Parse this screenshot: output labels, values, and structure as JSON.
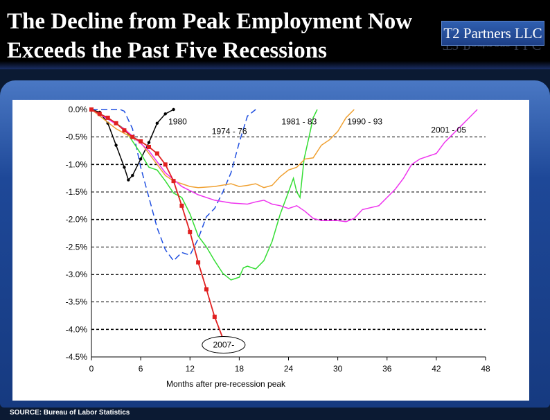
{
  "header": {
    "title": "The Decline from Peak Employment Now\nExceeds the Past Five Recessions",
    "brand": "T2 Partners LLC"
  },
  "footer": {
    "source": "SOURCE: Bureau of Labor Statistics"
  },
  "chart_data": {
    "type": "line",
    "title": "",
    "xlabel": "Months after pre-recession peak",
    "ylabel": "",
    "xlim": [
      0,
      48
    ],
    "ylim": [
      -4.5,
      0.0
    ],
    "xticks": [
      "0",
      "6",
      "12",
      "18",
      "24",
      "30",
      "36",
      "42",
      "48"
    ],
    "yticks": [
      "0.0%",
      "-0.5%",
      "-1.0%",
      "-1.5%",
      "-2.0%",
      "-2.5%",
      "-3.0%",
      "-3.5%",
      "-4.0%",
      "-4.5%"
    ],
    "grid": "horizontal dashed",
    "series": [
      {
        "name": "1980",
        "color": "#000000",
        "style": "solid-markers",
        "points": [
          [
            0,
            0
          ],
          [
            1,
            -0.05
          ],
          [
            2,
            -0.25
          ],
          [
            3,
            -0.65
          ],
          [
            4,
            -1.05
          ],
          [
            4.5,
            -1.28
          ],
          [
            5,
            -1.2
          ],
          [
            6,
            -0.9
          ],
          [
            7,
            -0.6
          ],
          [
            8,
            -0.25
          ],
          [
            9,
            -0.08
          ],
          [
            10,
            0
          ]
        ]
      },
      {
        "name": "1974 - 76",
        "color": "#1f4fe0",
        "style": "dashed",
        "points": [
          [
            0,
            0
          ],
          [
            2,
            0
          ],
          [
            3.5,
            0
          ],
          [
            4,
            -0.03
          ],
          [
            5,
            -0.35
          ],
          [
            6,
            -1.05
          ],
          [
            7,
            -1.6
          ],
          [
            8,
            -2.15
          ],
          [
            9,
            -2.55
          ],
          [
            10,
            -2.75
          ],
          [
            11,
            -2.6
          ],
          [
            12,
            -2.65
          ],
          [
            13,
            -2.35
          ],
          [
            14,
            -1.95
          ],
          [
            15,
            -1.8
          ],
          [
            16,
            -1.5
          ],
          [
            17,
            -1.15
          ],
          [
            18,
            -0.6
          ],
          [
            19,
            -0.12
          ],
          [
            20,
            0
          ]
        ]
      },
      {
        "name": "1981 - 83",
        "color": "#33dd33",
        "style": "solid",
        "points": [
          [
            0,
            0
          ],
          [
            2,
            -0.15
          ],
          [
            4,
            -0.35
          ],
          [
            6,
            -0.8
          ],
          [
            7,
            -1.05
          ],
          [
            8,
            -1.1
          ],
          [
            9,
            -1.3
          ],
          [
            10,
            -1.52
          ],
          [
            11,
            -1.6
          ],
          [
            12,
            -1.9
          ],
          [
            13,
            -2.3
          ],
          [
            14,
            -2.5
          ],
          [
            15,
            -2.75
          ],
          [
            16,
            -2.98
          ],
          [
            17,
            -3.1
          ],
          [
            18,
            -3.05
          ],
          [
            18.5,
            -2.88
          ],
          [
            19,
            -2.85
          ],
          [
            20,
            -2.9
          ],
          [
            21,
            -2.75
          ],
          [
            22,
            -2.4
          ],
          [
            23,
            -1.9
          ],
          [
            24,
            -1.5
          ],
          [
            24.6,
            -1.25
          ],
          [
            25,
            -1.5
          ],
          [
            25.4,
            -1.6
          ],
          [
            25.9,
            -0.9
          ],
          [
            26.5,
            -0.5
          ],
          [
            27,
            -0.15
          ],
          [
            27.5,
            0
          ]
        ]
      },
      {
        "name": "1990 - 93",
        "color": "#f0a030",
        "style": "solid",
        "points": [
          [
            0,
            0
          ],
          [
            3,
            -0.35
          ],
          [
            6,
            -0.6
          ],
          [
            9,
            -1.2
          ],
          [
            10,
            -1.3
          ],
          [
            12,
            -1.4
          ],
          [
            13,
            -1.42
          ],
          [
            15,
            -1.4
          ],
          [
            17,
            -1.35
          ],
          [
            18,
            -1.4
          ],
          [
            19,
            -1.38
          ],
          [
            20,
            -1.35
          ],
          [
            21,
            -1.42
          ],
          [
            22,
            -1.38
          ],
          [
            23,
            -1.22
          ],
          [
            24,
            -1.1
          ],
          [
            25,
            -1.05
          ],
          [
            26,
            -0.9
          ],
          [
            27,
            -0.88
          ],
          [
            28,
            -0.65
          ],
          [
            29,
            -0.55
          ],
          [
            30,
            -0.4
          ],
          [
            31,
            -0.15
          ],
          [
            32,
            0
          ]
        ]
      },
      {
        "name": "2001 - 05",
        "color": "#ee33ee",
        "style": "solid",
        "points": [
          [
            0,
            0
          ],
          [
            4,
            -0.35
          ],
          [
            7,
            -0.75
          ],
          [
            9,
            -1.15
          ],
          [
            11,
            -1.4
          ],
          [
            13,
            -1.55
          ],
          [
            15,
            -1.65
          ],
          [
            17,
            -1.7
          ],
          [
            19,
            -1.72
          ],
          [
            20,
            -1.68
          ],
          [
            21,
            -1.65
          ],
          [
            22,
            -1.72
          ],
          [
            23,
            -1.75
          ],
          [
            24,
            -1.8
          ],
          [
            25,
            -1.75
          ],
          [
            26,
            -1.85
          ],
          [
            27,
            -1.98
          ],
          [
            28,
            -2.02
          ],
          [
            30,
            -2.02
          ],
          [
            31,
            -2.04
          ],
          [
            32,
            -1.98
          ],
          [
            33,
            -1.82
          ],
          [
            35,
            -1.75
          ],
          [
            36,
            -1.6
          ],
          [
            37,
            -1.45
          ],
          [
            38,
            -1.25
          ],
          [
            39,
            -1.0
          ],
          [
            40,
            -0.9
          ],
          [
            41,
            -0.85
          ],
          [
            42,
            -0.8
          ],
          [
            43,
            -0.6
          ],
          [
            44,
            -0.45
          ],
          [
            45,
            -0.3
          ],
          [
            46,
            -0.15
          ],
          [
            47,
            0
          ]
        ]
      },
      {
        "name": "2007-",
        "color": "#e02020",
        "style": "solid-markers",
        "points": [
          [
            0,
            0
          ],
          [
            1,
            -0.08
          ],
          [
            2,
            -0.15
          ],
          [
            3,
            -0.25
          ],
          [
            4,
            -0.38
          ],
          [
            5,
            -0.5
          ],
          [
            6,
            -0.58
          ],
          [
            7,
            -0.68
          ],
          [
            8,
            -0.8
          ],
          [
            9,
            -1.0
          ],
          [
            10,
            -1.3
          ],
          [
            11,
            -1.75
          ],
          [
            12,
            -2.23
          ],
          [
            13,
            -2.78
          ],
          [
            14,
            -3.27
          ],
          [
            15,
            -3.77
          ],
          [
            16,
            -4.16
          ]
        ]
      }
    ],
    "labels": {
      "1980": "1980",
      "1974": "1974 - 76",
      "1981": "1981 - 83",
      "1990": "1990 - 93",
      "2001": "2001 - 05",
      "2007": "2007-"
    }
  }
}
